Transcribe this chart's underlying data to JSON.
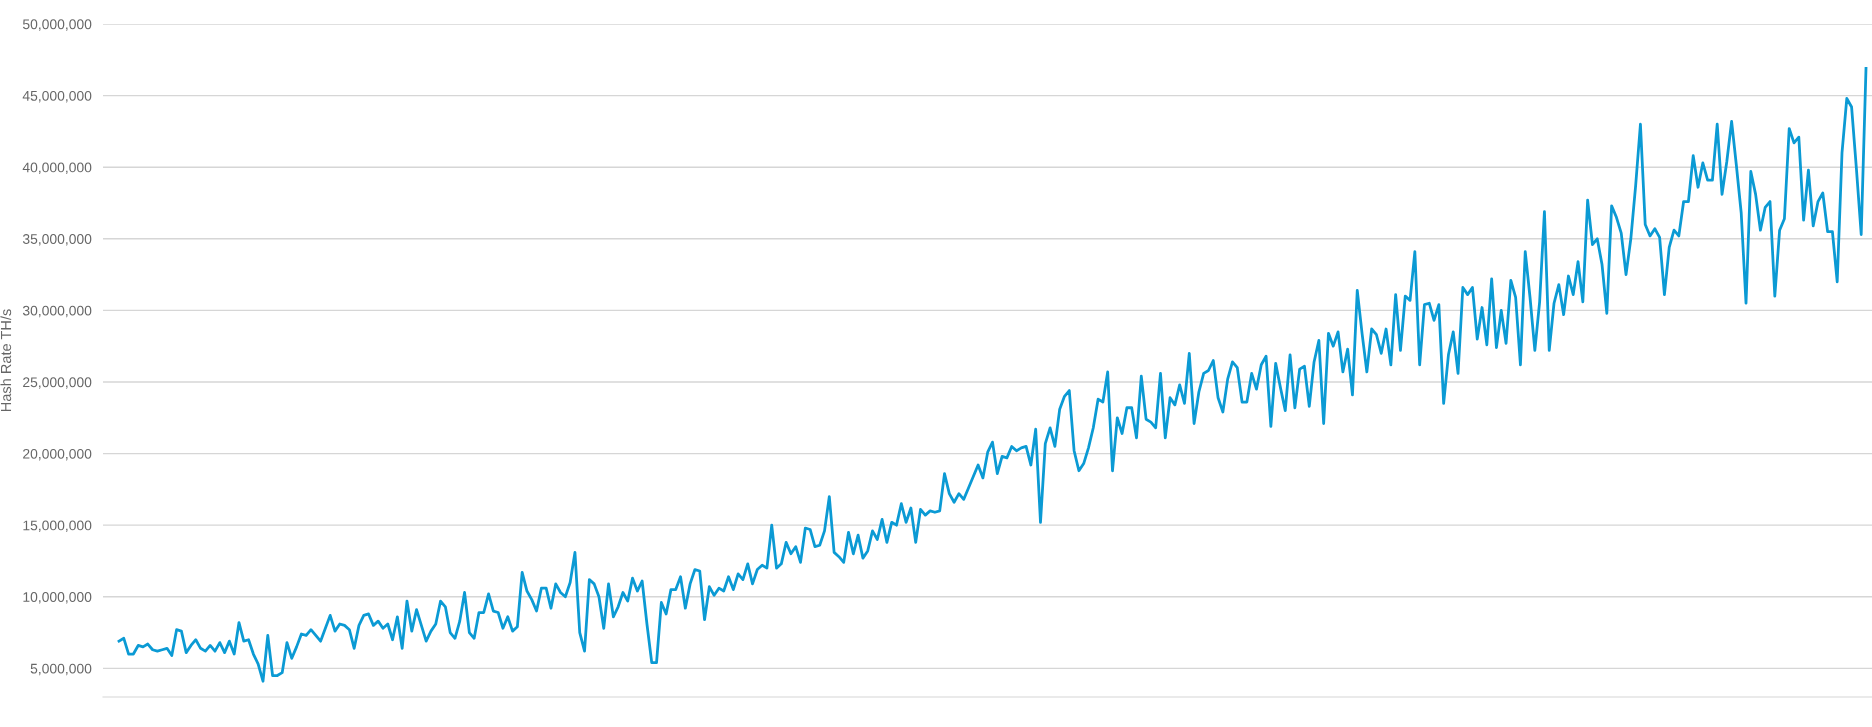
{
  "chart_data": {
    "type": "line",
    "ylabel": "Hash Rate TH/s",
    "ylim": [
      3000000,
      50000000
    ],
    "yticks": [
      {
        "value": 5000000,
        "label": "5,000,000"
      },
      {
        "value": 10000000,
        "label": "10,000,000"
      },
      {
        "value": 15000000,
        "label": "15,000,000"
      },
      {
        "value": 20000000,
        "label": "20,000,000"
      },
      {
        "value": 25000000,
        "label": "25,000,000"
      },
      {
        "value": 30000000,
        "label": "30,000,000"
      },
      {
        "value": 35000000,
        "label": "35,000,000"
      },
      {
        "value": 40000000,
        "label": "40,000,000"
      },
      {
        "value": 45000000,
        "label": "45,000,000"
      },
      {
        "value": 50000000,
        "label": "50,000,000"
      }
    ],
    "grid": "y",
    "marker": "none",
    "line_style": "solid",
    "tick_labels": "y",
    "series": [
      {
        "color": "#0b9ad4",
        "values": [
          6900000.0,
          7100000.0,
          6000000.0,
          6000000.0,
          6600000.0,
          6500000.0,
          6700000.0,
          6300000.0,
          6200000.0,
          6300000.0,
          6400000.0,
          5900000.0,
          7700000.0,
          7600000.0,
          6100000.0,
          6600000.0,
          7000000.0,
          6400000.0,
          6200000.0,
          6600000.0,
          6200000.0,
          6800000.0,
          6100000.0,
          6900000.0,
          6000000.0,
          8200000.0,
          6900000.0,
          7000000.0,
          6000000.0,
          5300000.0,
          4100000.0,
          7300000.0,
          4500000.0,
          4500000.0,
          4700000.0,
          6800000.0,
          5700000.0,
          6500000.0,
          7400000.0,
          7300000.0,
          7700000.0,
          7300000.0,
          6900000.0,
          7800000.0,
          8700000.0,
          7600000.0,
          8100000.0,
          8000000.0,
          7700000.0,
          6400000.0,
          8000000.0,
          8700000.0,
          8800000.0,
          8000000.0,
          8300000.0,
          7800000.0,
          8100000.0,
          7000000.0,
          8600000.0,
          6400000.0,
          9700000.0,
          7600000.0,
          9100000.0,
          8000000.0,
          6900000.0,
          7600000.0,
          8100000.0,
          9700000.0,
          9300000.0,
          7500000.0,
          7100000.0,
          8300000.0,
          10300000.0,
          7500000.0,
          7100000.0,
          8900000.0,
          8900000.0,
          10200000.0,
          9000000.0,
          8900000.0,
          7800000.0,
          8600000.0,
          7600000.0,
          7900000.0,
          11700000.0,
          10400000.0,
          9800000.0,
          9000000.0,
          10600000.0,
          10600000.0,
          9200000.0,
          10900000.0,
          10300000.0,
          10000000.0,
          11000000.0,
          13100000.0,
          7500000.0,
          6200000.0,
          11200000.0,
          10900000.0,
          10000000.0,
          7800000.0,
          10900000.0,
          8600000.0,
          9300000.0,
          10300000.0,
          9700000.0,
          11300000.0,
          10400000.0,
          11100000.0,
          8100000.0,
          5400000.0,
          5400000.0,
          9600000.0,
          8800000.0,
          10500000.0,
          10500000.0,
          11400000.0,
          9200000.0,
          10900000.0,
          11900000.0,
          11800000.0,
          8400000.0,
          10700000.0,
          10100000.0,
          10600000.0,
          10400000.0,
          11400000.0,
          10500000.0,
          11600000.0,
          11200000.0,
          12300000.0,
          10900000.0,
          11900000.0,
          12200000.0,
          12000000.0,
          15000000.0,
          12000000.0,
          12300000.0,
          13800000.0,
          13000000.0,
          13500000.0,
          12400000.0,
          14800000.0,
          14700000.0,
          13500000.0,
          13600000.0,
          14600000.0,
          17000000.0,
          13100000.0,
          12800000.0,
          12400000.0,
          14500000.0,
          13000000.0,
          14300000.0,
          12700000.0,
          13200000.0,
          14600000.0,
          14000000.0,
          15400000.0,
          13800000.0,
          15200000.0,
          15000000.0,
          16500000.0,
          15200000.0,
          16200000.0,
          13800000.0,
          16100000.0,
          15700000.0,
          16000000.0,
          15900000.0,
          16000000.0,
          18600000.0,
          17200000.0,
          16600000.0,
          17200000.0,
          16800000.0,
          17600000.0,
          18400000.0,
          19200000.0,
          18300000.0,
          20100000.0,
          20800000.0,
          18600000.0,
          19800000.0,
          19700000.0,
          20500000.0,
          20200000.0,
          20400000.0,
          20500000.0,
          19200000.0,
          21700000.0,
          15200000.0,
          20700000.0,
          21800000.0,
          20500000.0,
          23100000.0,
          24000000.0,
          24400000.0,
          20200000.0,
          18800000.0,
          19300000.0,
          20400000.0,
          21800000.0,
          23800000.0,
          23600000.0,
          25700000.0,
          18800000.0,
          22500000.0,
          21400000.0,
          23200000.0,
          23200000.0,
          21100000.0,
          25400000.0,
          22400000.0,
          22200000.0,
          21800000.0,
          25600000.0,
          21100000.0,
          23900000.0,
          23400000.0,
          24800000.0,
          23500000.0,
          27000000.0,
          22100000.0,
          24300000.0,
          25600000.0,
          25800000.0,
          26500000.0,
          23900000.0,
          22900000.0,
          25200000.0,
          26400000.0,
          26000000.0,
          23600000.0,
          23600000.0,
          25600000.0,
          24500000.0,
          26200000.0,
          26800000.0,
          21900000.0,
          26300000.0,
          24600000.0,
          23000000.0,
          26900000.0,
          23200000.0,
          25900000.0,
          26100000.0,
          23300000.0,
          26400000.0,
          27900000.0,
          22100000.0,
          28400000.0,
          27500000.0,
          28500000.0,
          25700000.0,
          27300000.0,
          24100000.0,
          31400000.0,
          28400000.0,
          25700000.0,
          28700000.0,
          28300000.0,
          27000000.0,
          28700000.0,
          26200000.0,
          31100000.0,
          27200000.0,
          31000000.0,
          30700000.0,
          34100000.0,
          26200000.0,
          30400000.0,
          30500000.0,
          29300000.0,
          30400000.0,
          23500000.0,
          26900000.0,
          28500000.0,
          25600000.0,
          31600000.0,
          31100000.0,
          31600000.0,
          28000000.0,
          30200000.0,
          27600000.0,
          32200000.0,
          27400000.0,
          30000000.0,
          27700000.0,
          32100000.0,
          30900000.0,
          26200000.0,
          34100000.0,
          30900000.0,
          27200000.0,
          30600000.0,
          36900000.0,
          27200000.0,
          30500000.0,
          31800000.0,
          29700000.0,
          32400000.0,
          31100000.0,
          33400000.0,
          30600000.0,
          37700000.0,
          34600000.0,
          35000000.0,
          33200000.0,
          29800000.0,
          37300000.0,
          36500000.0,
          35400000.0,
          32500000.0,
          35000000.0,
          38700000.0,
          43000000.0,
          36000000.0,
          35200000.0,
          35700000.0,
          35100000.0,
          31100000.0,
          34400000.0,
          35600000.0,
          35200000.0,
          37600000.0,
          37600000.0,
          40800000.0,
          38600000.0,
          40300000.0,
          39100000.0,
          39100000.0,
          43000000.0,
          38100000.0,
          40400000.0,
          43200000.0,
          40100000.0,
          36800000.0,
          30500000.0,
          39700000.0,
          38100000.0,
          35600000.0,
          37200000.0,
          37600000.0,
          31000000.0,
          35600000.0,
          36400000.0,
          42700000.0,
          41700000.0,
          42100000.0,
          36300000.0,
          39800000.0,
          35900000.0,
          37600000.0,
          38200000.0,
          35500000.0,
          35500000.0,
          32000000.0,
          41000000.0,
          44800000.0,
          44200000.0,
          39900000.0,
          35300000.0,
          46900000.0
        ]
      }
    ]
  }
}
